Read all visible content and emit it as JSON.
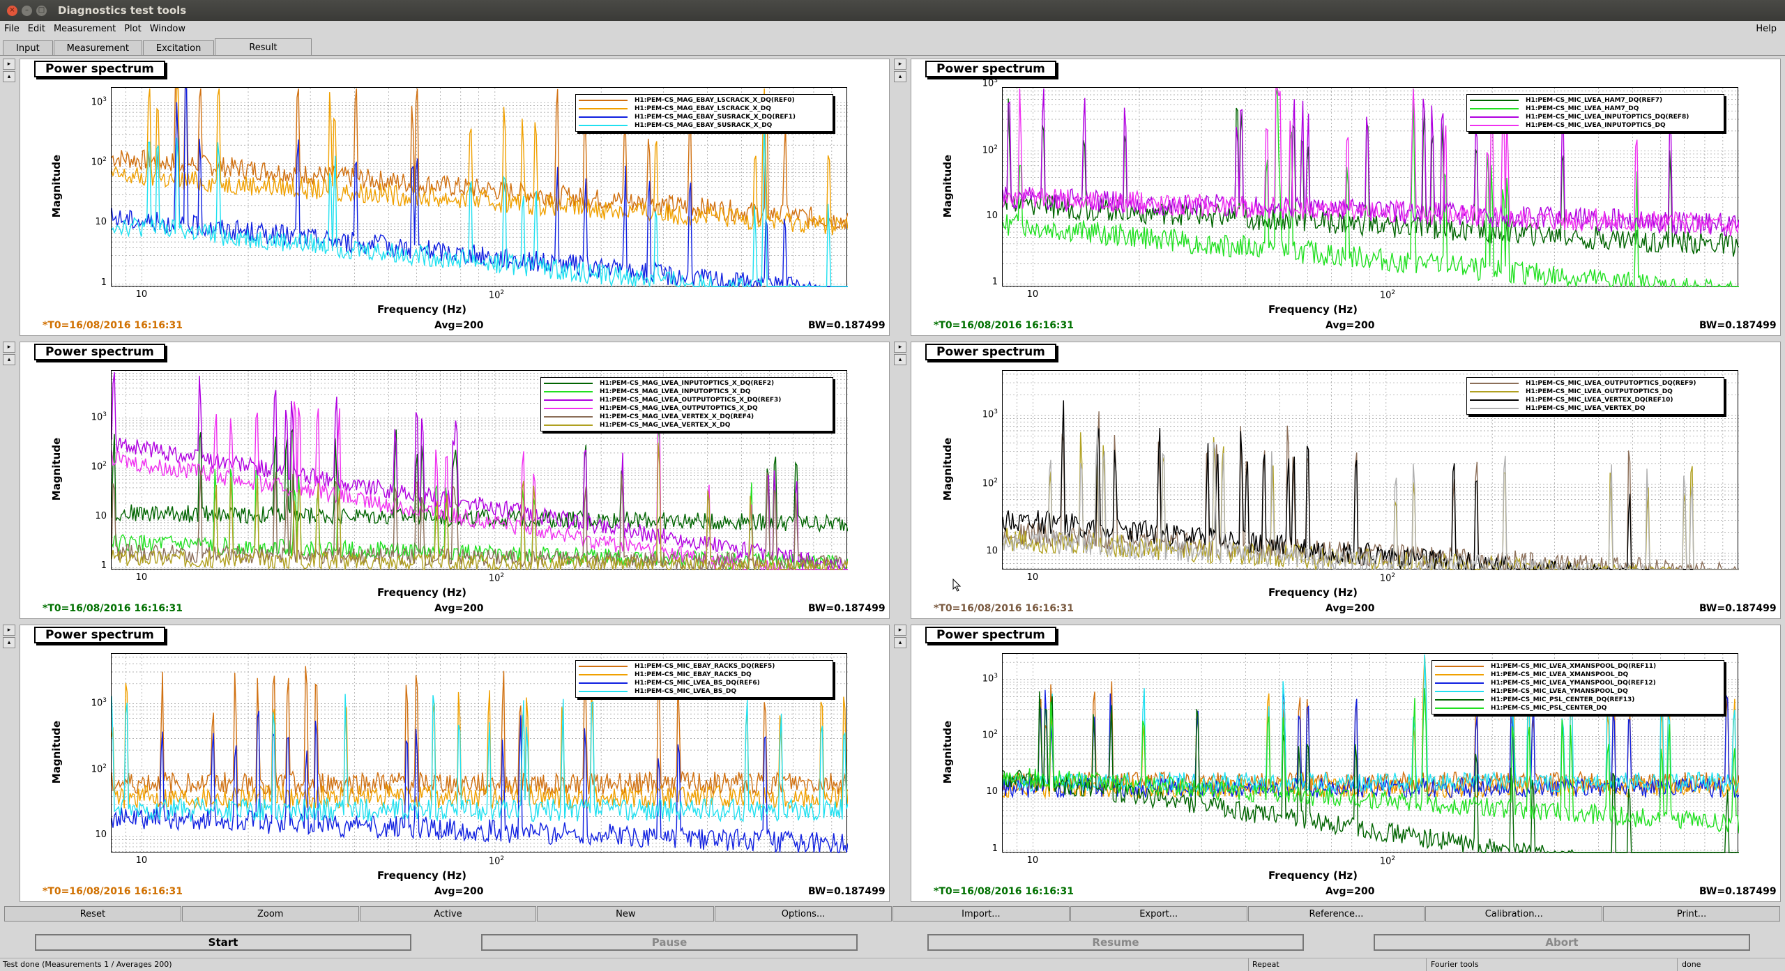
{
  "window": {
    "title": "Diagnostics test tools"
  },
  "menu": [
    "File",
    "Edit",
    "Measurement",
    "Plot",
    "Window"
  ],
  "help_label": "Help",
  "tabs": [
    "Input",
    "Measurement",
    "Excitation",
    "Result"
  ],
  "active_tab": "Result",
  "panels": [
    {
      "title": "Power spectrum",
      "ylabel": "Magnitude",
      "xlabel": "Frequency (Hz)",
      "t0": "*T0=16/08/2016 16:16:31",
      "t0_color": "#d07000",
      "avg": "Avg=200",
      "bw": "BW=0.187499",
      "yticks": [
        "1",
        "10",
        "10²",
        "10³"
      ],
      "ydecades": 3.3,
      "xticks": [
        "10",
        "10²"
      ],
      "legend": [
        {
          "name": "H1:PEM-CS_MAG_EBAY_LSCRACK_X_DQ(REF0)",
          "color": "#d07010"
        },
        {
          "name": "H1:PEM-CS_MAG_EBAY_LSCRACK_X_DQ",
          "color": "#f0a000"
        },
        {
          "name": "H1:PEM-CS_MAG_EBAY_SUSRACK_X_DQ(REF1)",
          "color": "#1020e0"
        },
        {
          "name": "H1:PEM-CS_MAG_EBAY_SUSRACK_X_DQ",
          "color": "#20e0f0"
        }
      ],
      "series_levels": [
        2.1,
        1.8,
        1.1,
        1.0
      ],
      "series_slopes": [
        -0.5,
        -0.4,
        -0.6,
        -0.6
      ]
    },
    {
      "title": "Power spectrum",
      "ylabel": "Magnitude",
      "xlabel": "Frequency (Hz)",
      "t0": "*T0=16/08/2016 16:16:31",
      "t0_color": "#007000",
      "avg": "Avg=200",
      "bw": "BW=0.187499",
      "yticks": [
        "1",
        "10",
        "10²",
        "10³"
      ],
      "ydecades": 3.0,
      "xticks": [
        "10",
        "10²"
      ],
      "legend": [
        {
          "name": "H1:PEM-CS_MIC_LVEA_HAM7_DQ(REF7)",
          "color": "#006400"
        },
        {
          "name": "H1:PEM-CS_MIC_LVEA_HAM7_DQ",
          "color": "#20e020"
        },
        {
          "name": "H1:PEM-CS_MIC_LVEA_INPUTOPTICS_DQ(REF8)",
          "color": "#b000e0"
        },
        {
          "name": "H1:PEM-CS_MIC_LVEA_INPUTOPTICS_DQ",
          "color": "#f030f0"
        }
      ],
      "series_levels": [
        1.2,
        0.9,
        1.3,
        1.3
      ],
      "series_slopes": [
        -0.3,
        -0.5,
        -0.2,
        -0.2
      ]
    },
    {
      "title": "Power spectrum",
      "ylabel": "Magnitude",
      "xlabel": "Frequency (Hz)",
      "t0": "*T0=16/08/2016 16:16:31",
      "t0_color": "#007000",
      "avg": "Avg=200",
      "bw": "BW=0.187499",
      "yticks": [
        "1",
        "10",
        "10²",
        "10³"
      ],
      "ydecades": 4.0,
      "xticks": [
        "10",
        "10²"
      ],
      "legend": [
        {
          "name": "H1:PEM-CS_MAG_LVEA_INPUTOPTICS_X_DQ(REF2)",
          "color": "#006400"
        },
        {
          "name": "H1:PEM-CS_MAG_LVEA_INPUTOPTICS_X_DQ",
          "color": "#20e020"
        },
        {
          "name": "H1:PEM-CS_MAG_LVEA_OUTPUTOPTICS_X_DQ(REF3)",
          "color": "#b000e0"
        },
        {
          "name": "H1:PEM-CS_MAG_LVEA_OUTPUTOPTICS_X_DQ",
          "color": "#f030f0"
        },
        {
          "name": "H1:PEM-CS_MAG_LVEA_VERTEX_X_DQ(REF4)",
          "color": "#8b6e58"
        },
        {
          "name": "H1:PEM-CS_MAG_LVEA_VERTEX_X_DQ",
          "color": "#b0a020"
        }
      ],
      "series_levels": [
        1.1,
        0.5,
        2.5,
        2.2,
        0.3,
        0.2
      ],
      "series_slopes": [
        -0.1,
        -0.2,
        -1.2,
        -1.2,
        -0.1,
        -0.1
      ]
    },
    {
      "title": "Power spectrum",
      "ylabel": "Magnitude",
      "xlabel": "Frequency (Hz)",
      "t0": "*T0=16/08/2016 16:16:31",
      "t0_color": "#7a5a40",
      "avg": "Avg=200",
      "bw": "BW=0.187499",
      "yticks": [
        "10",
        "10²",
        "10³"
      ],
      "ydecades": 2.9,
      "xticks": [
        "10",
        "10²"
      ],
      "legend": [
        {
          "name": "H1:PEM-CS_MIC_LVEA_OUTPUTOPTICS_DQ(REF9)",
          "color": "#8b6e58"
        },
        {
          "name": "H1:PEM-CS_MIC_LVEA_OUTPUTOPTICS_DQ",
          "color": "#b0a020"
        },
        {
          "name": "H1:PEM-CS_MIC_LVEA_VERTEX_DQ(REF10)",
          "color": "#000000"
        },
        {
          "name": "H1:PEM-CS_MIC_LVEA_VERTEX_DQ",
          "color": "#b0b0b0"
        }
      ],
      "series_levels": [
        1.3,
        1.2,
        1.5,
        1.2
      ],
      "series_slopes": [
        -0.3,
        -0.3,
        -0.5,
        -0.3
      ]
    },
    {
      "title": "Power spectrum",
      "ylabel": "Magnitude",
      "xlabel": "Frequency (Hz)",
      "t0": "*T0=16/08/2016 16:16:31",
      "t0_color": "#d07000",
      "avg": "Avg=200",
      "bw": "BW=0.187499",
      "yticks": [
        "10",
        "10²",
        "10³"
      ],
      "ydecades": 3.0,
      "xticks": [
        "10",
        "10²"
      ],
      "legend": [
        {
          "name": "H1:PEM-CS_MIC_EBAY_RACKS_DQ(REF5)",
          "color": "#d07010"
        },
        {
          "name": "H1:PEM-CS_MIC_EBAY_RACKS_DQ",
          "color": "#f0a000"
        },
        {
          "name": "H1:PEM-CS_MIC_LVEA_BS_DQ(REF6)",
          "color": "#1020e0"
        },
        {
          "name": "H1:PEM-CS_MIC_LVEA_BS_DQ",
          "color": "#20e0f0"
        }
      ],
      "series_levels": [
        1.8,
        1.6,
        1.3,
        1.4
      ],
      "series_slopes": [
        0.0,
        0.0,
        -0.2,
        0.0
      ]
    },
    {
      "title": "Power spectrum",
      "ylabel": "Magnitude",
      "xlabel": "Frequency (Hz)",
      "t0": "*T0=16/08/2016 16:16:31",
      "t0_color": "#007000",
      "avg": "Avg=200",
      "bw": "BW=0.187499",
      "yticks": [
        "1",
        "10",
        "10²",
        "10³"
      ],
      "ydecades": 3.5,
      "xticks": [
        "10",
        "10²"
      ],
      "legend": [
        {
          "name": "H1:PEM-CS_MIC_LVEA_XMANSPOOL_DQ(REF11)",
          "color": "#d07010"
        },
        {
          "name": "H1:PEM-CS_MIC_LVEA_XMANSPOOL_DQ",
          "color": "#f0a000"
        },
        {
          "name": "H1:PEM-CS_MIC_LVEA_YMANSPOOL_DQ(REF12)",
          "color": "#1020e0"
        },
        {
          "name": "H1:PEM-CS_MIC_LVEA_YMANSPOOL_DQ",
          "color": "#20e0f0"
        },
        {
          "name": "H1:PEM-CS_MIC_PSL_CENTER_DQ(REF13)",
          "color": "#006400"
        },
        {
          "name": "H1:PEM-CS_MIC_PSL_CENTER_DQ",
          "color": "#20e020"
        }
      ],
      "series_levels": [
        1.2,
        1.1,
        1.1,
        1.2,
        1.3,
        1.3
      ],
      "series_slopes": [
        0.0,
        0.0,
        0.0,
        0.0,
        -0.9,
        -0.4
      ]
    }
  ],
  "buttons": [
    "Reset",
    "Zoom",
    "Active",
    "New",
    "Options...",
    "Import...",
    "Export...",
    "Reference...",
    "Calibration...",
    "Print..."
  ],
  "controls": [
    "Start",
    "Pause",
    "Resume",
    "Abort"
  ],
  "status": {
    "main": "Test done (Measurements 1 / Averages 200)",
    "repeat": "Repeat",
    "fourier": "Fourier tools",
    "done": "done"
  }
}
